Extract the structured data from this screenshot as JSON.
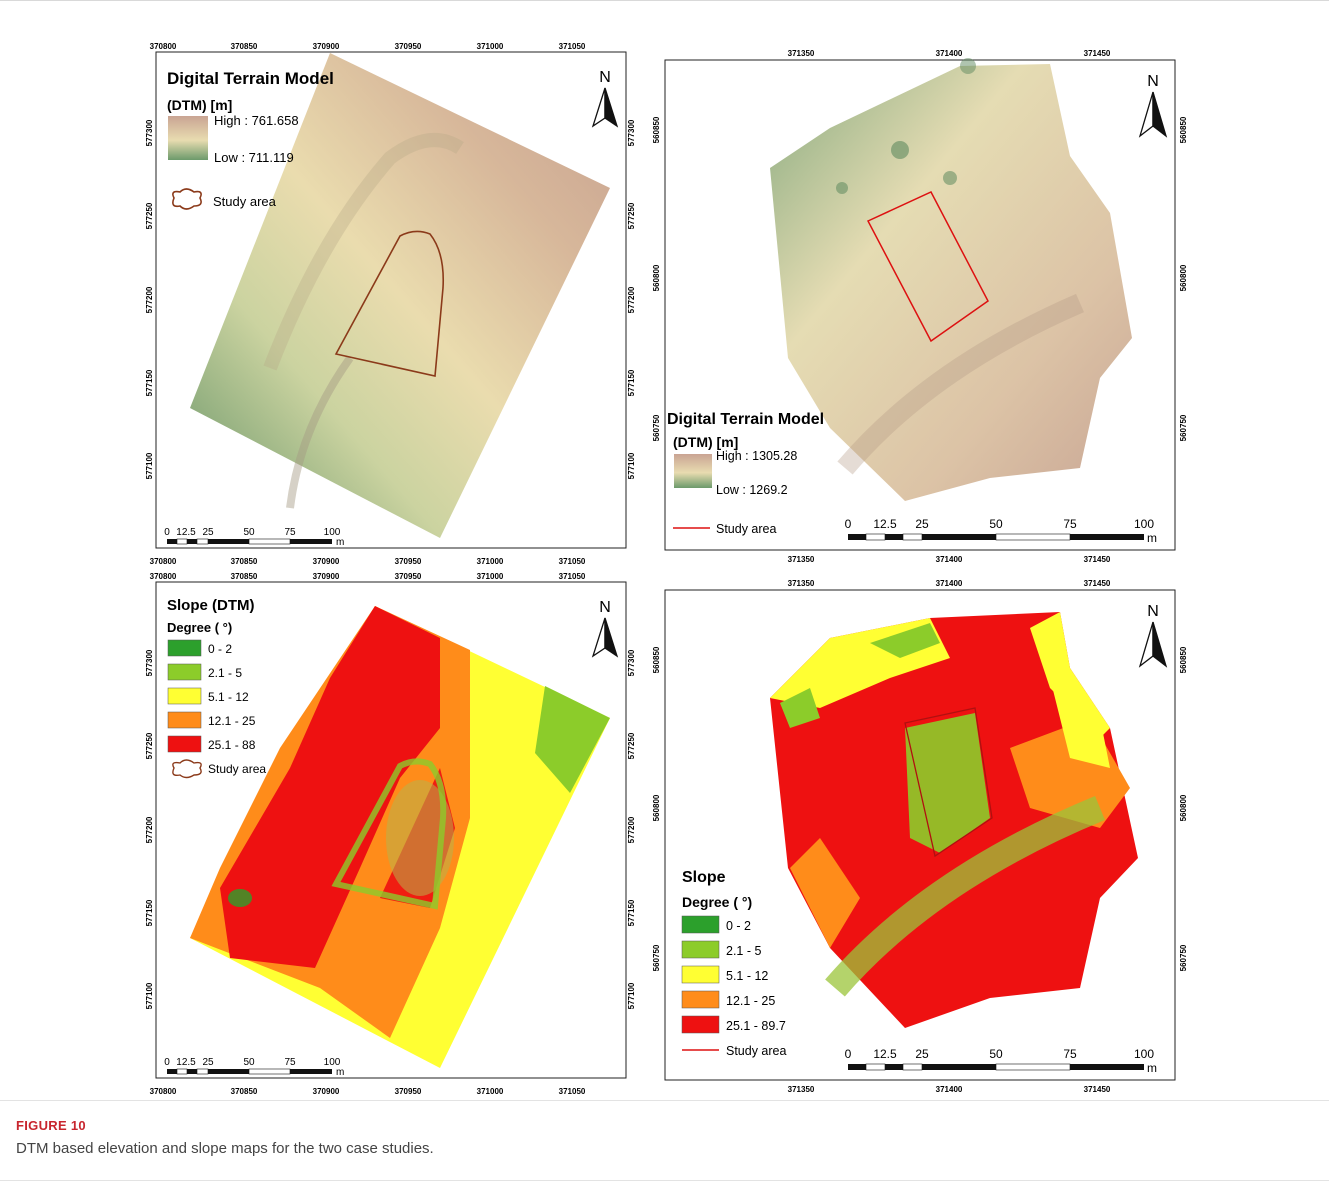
{
  "figure": {
    "label": "FIGURE 10",
    "caption": "DTM based elevation and slope maps for the two case studies."
  },
  "common": {
    "north": "N",
    "scale_unit": "m"
  },
  "panels": [
    {
      "id": "dtm-site1",
      "title_line1": "Digital Terrain Model",
      "title_line2": "(DTM) [m]",
      "high_label": "High : 761.658",
      "low_label": "Low : 711.119",
      "study_area_label": "Study area",
      "top_ticks": [
        "370800",
        "370850",
        "370900",
        "370950",
        "371000",
        "371050"
      ],
      "bottom_ticks": [
        "370800",
        "370850",
        "370900",
        "370950",
        "371000",
        "371050"
      ],
      "left_ticks": [
        "577300",
        "577250",
        "577200",
        "577150",
        "577100"
      ],
      "right_ticks": [
        "577300",
        "577250",
        "577200",
        "577150",
        "577100"
      ],
      "scale_labels": [
        "0",
        "12.5",
        "25",
        "50",
        "75",
        "100"
      ]
    },
    {
      "id": "dtm-site2",
      "title_line1": "Digital Terrain Model",
      "title_line2": "(DTM) [m]",
      "high_label": "High : 1305.28",
      "low_label": "Low : 1269.2",
      "study_area_label": "Study area",
      "top_ticks": [
        "371350",
        "371400",
        "371450"
      ],
      "bottom_ticks": [
        "371350",
        "371400",
        "371450"
      ],
      "left_ticks": [
        "560850",
        "560800",
        "560750"
      ],
      "right_ticks": [
        "560850",
        "560800",
        "560750"
      ],
      "scale_labels": [
        "0",
        "12.5",
        "25",
        "50",
        "75",
        "100"
      ]
    },
    {
      "id": "slope-site1",
      "title_line1": "Slope (DTM)",
      "subtitle": "Degree ( °)",
      "classes": [
        "0 - 2",
        "2.1 - 5",
        "5.1 - 12",
        "12.1 - 25",
        "25.1 - 88"
      ],
      "study_area_label": "Study area",
      "top_ticks": [
        "370800",
        "370850",
        "370900",
        "370950",
        "371000",
        "371050"
      ],
      "bottom_ticks": [
        "370800",
        "370850",
        "370900",
        "370950",
        "371000",
        "371050"
      ],
      "left_ticks": [
        "577300",
        "577250",
        "577200",
        "577150",
        "577100"
      ],
      "right_ticks": [
        "577300",
        "577250",
        "577200",
        "577150",
        "577100"
      ],
      "scale_labels": [
        "0",
        "12.5",
        "25",
        "50",
        "75",
        "100"
      ]
    },
    {
      "id": "slope-site2",
      "title_line1": "Slope",
      "subtitle": "Degree ( °)",
      "classes": [
        "0 - 2",
        "2.1 - 5",
        "5.1 - 12",
        "12.1 - 25",
        "25.1 - 89.7"
      ],
      "study_area_label": "Study area",
      "top_ticks": [
        "371350",
        "371400",
        "371450"
      ],
      "bottom_ticks": [
        "371350",
        "371400",
        "371450"
      ],
      "left_ticks": [
        "560850",
        "560800",
        "560750"
      ],
      "right_ticks": [
        "560850",
        "560800",
        "560750"
      ],
      "scale_labels": [
        "0",
        "12.5",
        "25",
        "50",
        "75",
        "100"
      ]
    }
  ],
  "colors": {
    "dtm_high": "#c9a493",
    "dtm_mid": "#e8dcb0",
    "dtm_low": "#5f8f63",
    "slope": [
      "#2ca02c",
      "#8ccc2a",
      "#ffff33",
      "#ff8c1a",
      "#ee1111"
    ],
    "study_area_site1": "#8b3a1a",
    "study_area_site2": "#dd1111"
  }
}
